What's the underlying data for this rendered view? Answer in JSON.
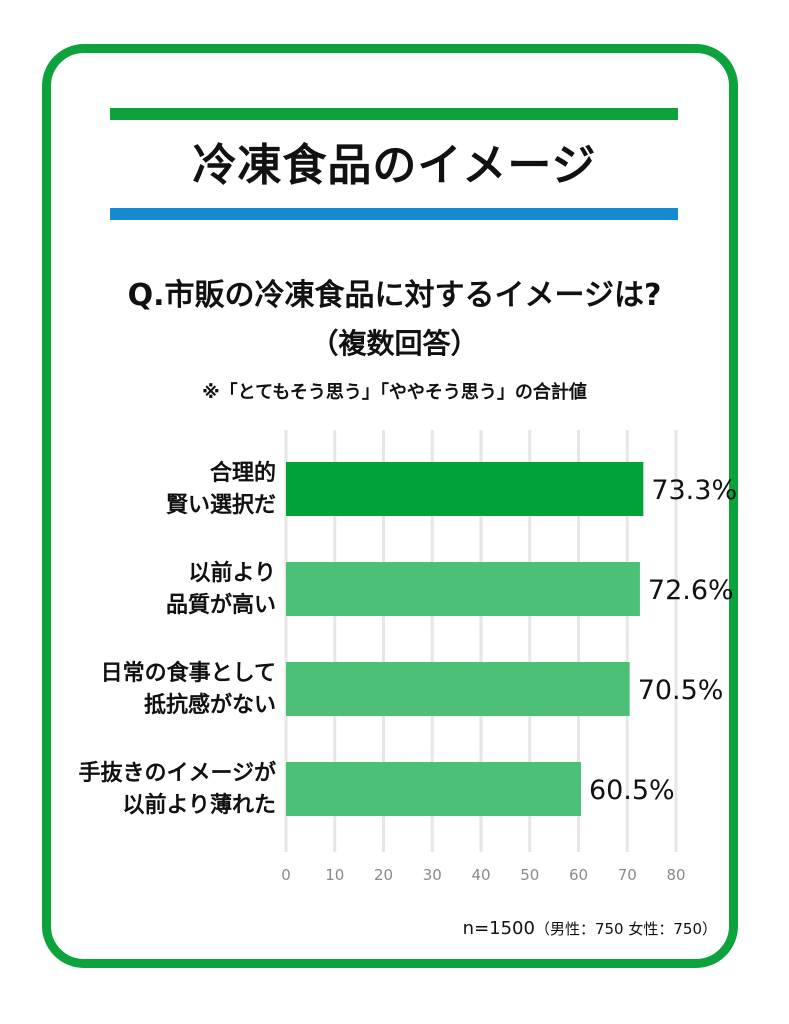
{
  "header": {
    "title": "冷凍食品のイメージ",
    "rule_top_color": "#0ca33c",
    "rule_bottom_color": "#148bd1"
  },
  "question": {
    "text": "Q.市販の冷凍食品に対するイメージは?",
    "sub": "（複数回答）",
    "note": "※「とてもそう思う」「ややそう思う」の合計値"
  },
  "footer": {
    "sample": "n=1500",
    "breakdown": "（男性：750 女性：750）"
  },
  "colors": {
    "frame": "#0ca33c",
    "highlight_bar": "#00a23a",
    "bar": "#4cc077",
    "grid": "#e6e6e6"
  },
  "chart_data": {
    "type": "bar",
    "orientation": "horizontal",
    "categories": [
      [
        "合理的",
        "賢い選択だ"
      ],
      [
        "以前より",
        "品質が高い"
      ],
      [
        "日常の食事として",
        "抵抗感がない"
      ],
      [
        "手抜きのイメージが",
        "以前より薄れた"
      ]
    ],
    "values": [
      73.3,
      72.6,
      70.5,
      60.5
    ],
    "value_labels": [
      "73.3%",
      "72.6%",
      "70.5%",
      "60.5%"
    ],
    "highlight_index": 0,
    "xlim": [
      0,
      80
    ],
    "xticks": [
      0,
      10,
      20,
      30,
      40,
      50,
      60,
      70,
      80
    ],
    "grid": true,
    "xlabel": "",
    "ylabel": ""
  }
}
